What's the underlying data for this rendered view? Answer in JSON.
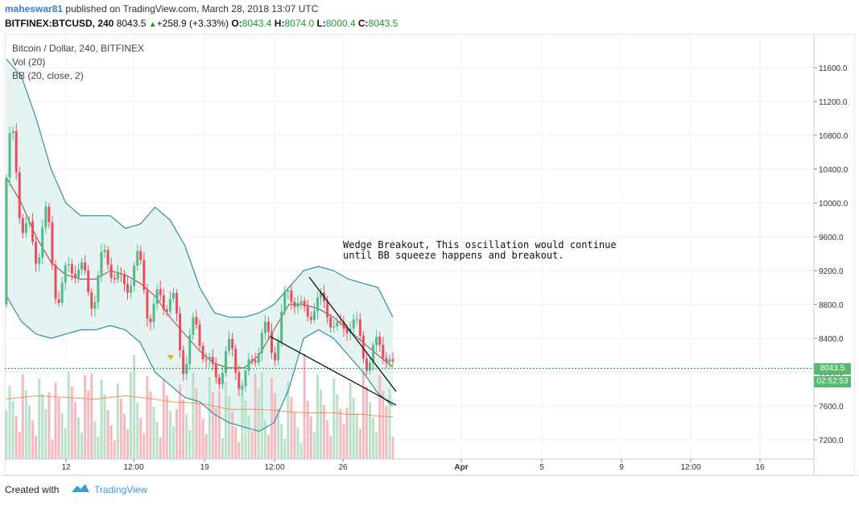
{
  "header": {
    "user": "maheswar81",
    "published": "published on TradingView.com, March 28, 2018 13:07 UTC",
    "symbol": "BITFINEX:BTCUSD, 240",
    "last": "8043.5",
    "change": "+258.9 (+3.33%)",
    "o_label": "O:",
    "o": "8043.4",
    "h_label": "H:",
    "h": "8074.0",
    "l_label": "L:",
    "l": "8000.4",
    "c_label": "C:",
    "c": "8043.5"
  },
  "legend": {
    "title": "Bitcoin / Dollar, 240, BITFINEX",
    "vol": "Vol (20)",
    "bb": "BB (20, close, 2)"
  },
  "annotation": {
    "line1": "Wedge Breakout, This oscillation would continue",
    "line2": "until BB squeeze happens and breakout."
  },
  "badges": {
    "price": "8043.5",
    "timer": "02:52:53"
  },
  "footer": {
    "created": "Created with",
    "brand": "TradingView"
  },
  "colors": {
    "up": "#53b987",
    "down": "#eb4d5c",
    "band": "#2f8f9d",
    "band_fill": "#e5f4f3",
    "basis": "#9b3d3d",
    "vol_ma": "#f28e5c",
    "vol_up": "#b7e2c9",
    "vol_down": "#f6b9c0",
    "price_line": "#1a9e2c"
  },
  "chart_data": {
    "type": "candlestick",
    "title": "Bitcoin / Dollar, 240, BITFINEX",
    "ylim": [
      7000,
      11800
    ],
    "y_ticks": [
      "7200.0",
      "7600.0",
      "8000.0",
      "8400.0",
      "8800.0",
      "9200.0",
      "9600.0",
      "10000.0",
      "10400.0",
      "10800.0",
      "11200.0",
      "11600.0"
    ],
    "x_tick_labels": [
      "12",
      "12:00",
      "19",
      "12:00",
      "26",
      "Apr",
      "5",
      "9",
      "12:00",
      "16"
    ],
    "last_price": 8043.5,
    "bb_upper": [
      11700,
      11500,
      11000,
      10400,
      10000,
      9850,
      9850,
      9850,
      9700,
      9750,
      9950,
      9800,
      9500,
      9000,
      8700,
      8650,
      8650,
      8700,
      8800,
      9000,
      9200,
      9250,
      9200,
      9100,
      9050,
      9000,
      8650
    ],
    "bb_basis": [
      10300,
      10000,
      9600,
      9300,
      9150,
      9100,
      9100,
      9200,
      9150,
      9050,
      8900,
      8650,
      8450,
      8250,
      8100,
      8050,
      8050,
      8200,
      8500,
      8800,
      8800,
      8750,
      8650,
      8500,
      8350,
      8200,
      8060
    ],
    "bb_lower": [
      8900,
      8600,
      8450,
      8400,
      8450,
      8500,
      8500,
      8550,
      8500,
      8350,
      8000,
      7850,
      7700,
      7650,
      7500,
      7400,
      7350,
      7300,
      7400,
      7800,
      8400,
      8500,
      8400,
      8200,
      8000,
      7750,
      7600
    ],
    "vol_ma": [
      7680,
      7700,
      7720,
      7710,
      7700,
      7690,
      7680,
      7700,
      7720,
      7700,
      7680,
      7650,
      7640,
      7630,
      7600,
      7560,
      7560,
      7560,
      7550,
      7530,
      7520,
      7520,
      7520,
      7500,
      7500,
      7480,
      7470
    ],
    "wedge_upper": [
      [
        384,
        344
      ],
      [
        492,
        486
      ]
    ],
    "wedge_lower": [
      [
        336,
        418
      ],
      [
        492,
        503
      ]
    ]
  }
}
